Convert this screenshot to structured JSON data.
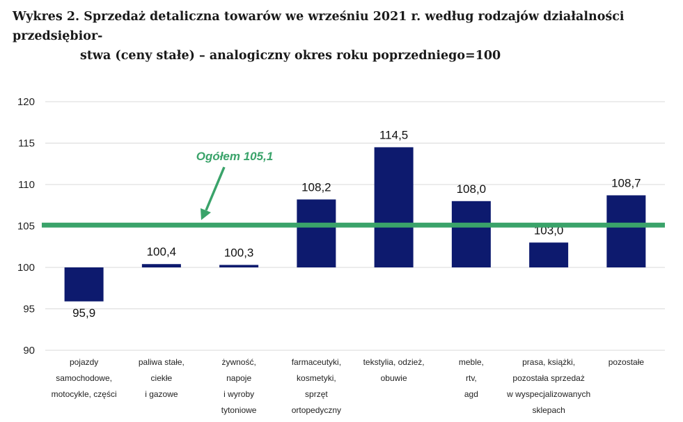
{
  "title_line1": "Wykres 2. Sprzedaż detaliczna towarów we wrześniu 2021 r. według rodzajów działalności przedsiębior-",
  "title_line2": "stwa (ceny stałe) – analogiczny okres roku poprzedniego=100",
  "colors": {
    "bar": "#0d1a6e",
    "reference": "#3aa36a",
    "grid": "#d9d9d9"
  },
  "chart_data": {
    "type": "bar",
    "categories": [
      [
        "pojazdy",
        "samochodowe,",
        "motocykle, części"
      ],
      [
        "paliwa stałe,",
        "ciekłe",
        "i gazowe"
      ],
      [
        "żywność,",
        "napoje",
        "i wyroby",
        "tytoniowe"
      ],
      [
        "farmaceutyki,",
        "kosmetyki,",
        "sprzęt",
        "ortopedyczny"
      ],
      [
        "tekstylia, odzież,",
        "obuwie"
      ],
      [
        "meble,",
        "rtv,",
        "agd"
      ],
      [
        "prasa, książki,",
        "pozostała sprzedaż",
        "w wyspecjalizowanych",
        "sklepach"
      ],
      [
        "pozostałe"
      ]
    ],
    "values": [
      95.9,
      100.4,
      100.3,
      108.2,
      114.5,
      108.0,
      103.0,
      108.7
    ],
    "value_labels": [
      "95,9",
      "100,4",
      "100,3",
      "108,2",
      "114,5",
      "108,0",
      "103,0",
      "108,7"
    ],
    "baseline": 100,
    "ylim": [
      90,
      120
    ],
    "yticks": [
      90,
      95,
      100,
      105,
      110,
      115,
      120
    ],
    "grid": true,
    "reference_line": {
      "value": 105.1,
      "label": "Ogółem 105,1"
    }
  }
}
